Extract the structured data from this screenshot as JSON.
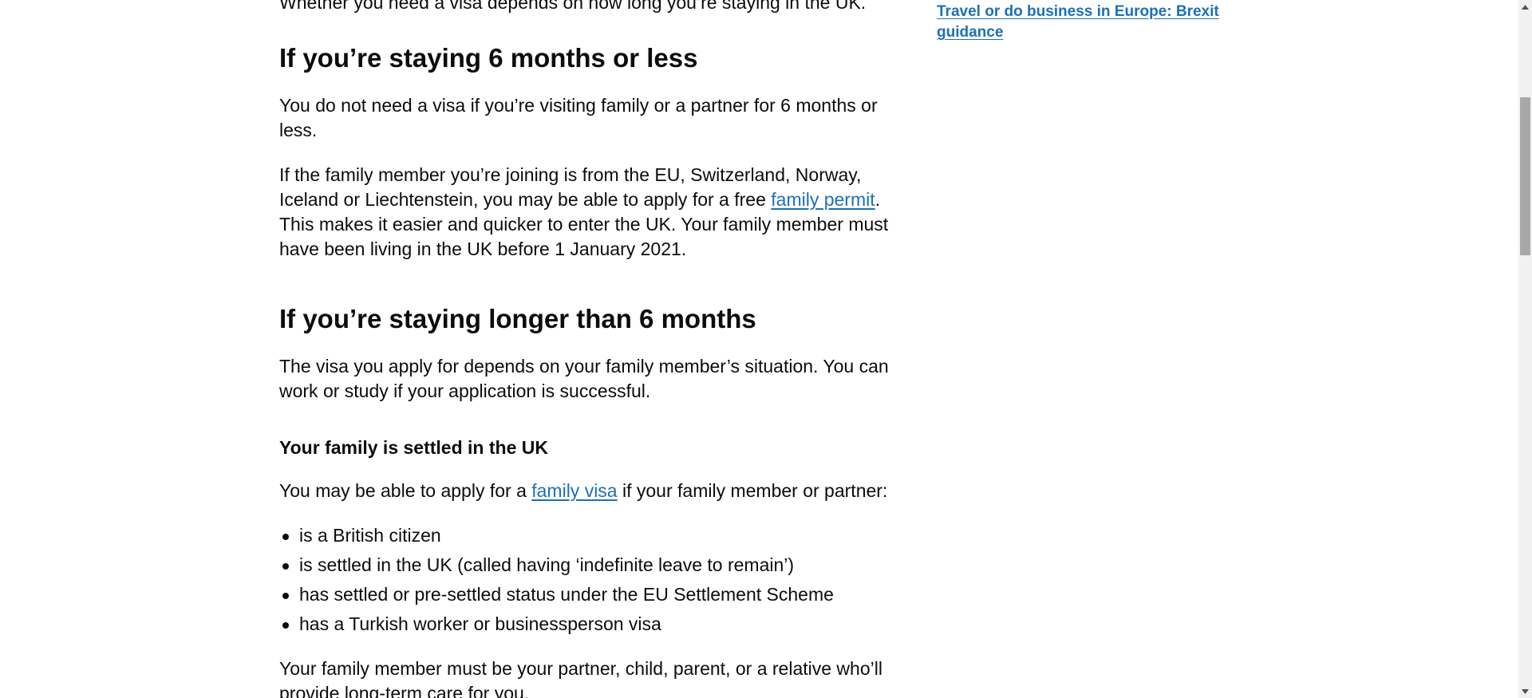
{
  "main": {
    "intro_text": "Whether you need a visa depends on how long you’re staying in the UK.",
    "section1": {
      "heading": "If you’re staying 6 months or less",
      "para1": "You do not need a visa if you’re visiting family or a partner for 6 months or less.",
      "para2_before": "If the family member you’re joining is from the EU, Switzerland, Norway, Iceland or Liechtenstein, you may be able to apply for a free ",
      "para2_link": "family permit",
      "para2_after": ". This makes it easier and quicker to enter the UK. Your family member must have been living in the UK before 1 January 2021."
    },
    "section2": {
      "heading": "If you’re staying longer than 6 months",
      "para1": "The visa you apply for depends on your family member’s situation. You can work or study if your application is successful.",
      "subheading": "Your family is settled in the UK",
      "para2_before": "You may be able to apply for a ",
      "para2_link": "family visa",
      "para2_after": " if your family member or partner:",
      "bullets": [
        "is a British citizen",
        "is settled in the UK (called having ‘indefinite leave to remain’)",
        "has settled or pre-settled status under the EU Settlement Scheme",
        "has a Turkish worker or businessperson visa"
      ],
      "para3": "Your family member must be your partner, child, parent, or a relative who’ll provide long-term care for you."
    }
  },
  "sidebar": {
    "link": "Travel or do business in Europe: Brexit guidance"
  },
  "colors": {
    "link": "#1d70b8",
    "text": "#0b0c0c"
  },
  "scrollbar": {
    "up_icon": "scroll-up-arrow-icon",
    "down_icon": "scroll-down-arrow-icon"
  }
}
